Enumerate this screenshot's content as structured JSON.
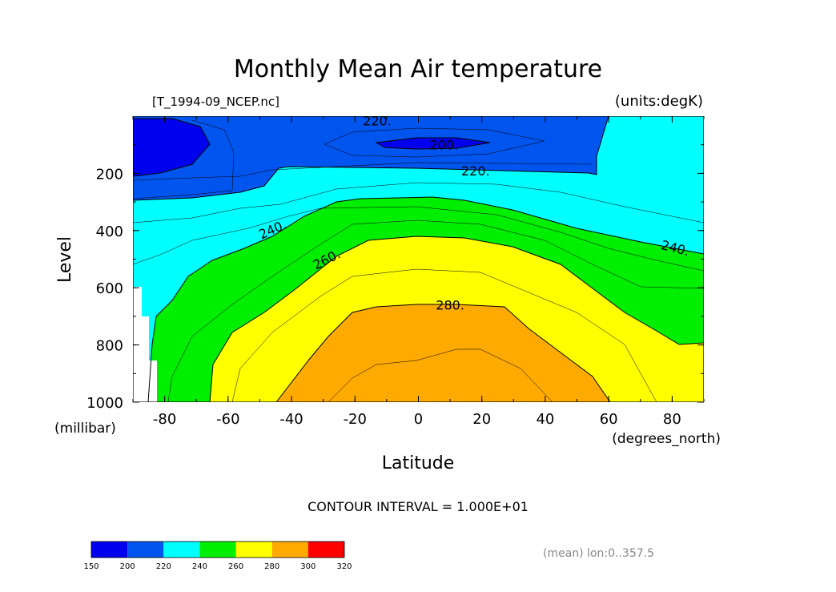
{
  "chart_data": {
    "type": "contour",
    "title": "Monthly Mean Air temperature",
    "source_label": "[T_1994-09_NCEP.nc]",
    "units_label": "(units:degK)",
    "xlabel": "Latitude",
    "x_units": "(degrees_north)",
    "ylabel": "Level",
    "y_units": "(millibar)",
    "xlim": [
      -90,
      90
    ],
    "ylim": [
      1000,
      0
    ],
    "x_ticks": [
      "-80",
      "-60",
      "-40",
      "-20",
      "0",
      "20",
      "40",
      "60",
      "80"
    ],
    "x_tick_values": [
      -80,
      -60,
      -40,
      -20,
      0,
      20,
      40,
      60,
      80
    ],
    "y_ticks": [
      "200",
      "400",
      "600",
      "800",
      "1000"
    ],
    "y_tick_values": [
      200,
      400,
      600,
      800,
      1000
    ],
    "contour_interval_text": "CONTOUR INTERVAL = 1.000E+01",
    "averaging_note": "(mean) lon:0..357.5",
    "contour_labels": [
      {
        "text": "220.",
        "lat": -13,
        "level": 15
      },
      {
        "text": "200.",
        "lat": 8,
        "level": 100
      },
      {
        "text": "220.",
        "lat": 18,
        "level": 190
      },
      {
        "text": "240.",
        "lat": -46,
        "level": 395
      },
      {
        "text": "260.",
        "lat": -29,
        "level": 500
      },
      {
        "text": "240.",
        "lat": 81,
        "level": 460
      },
      {
        "text": "280.",
        "lat": 10,
        "level": 660
      }
    ],
    "colorbar": {
      "levels": [
        "150",
        "200",
        "220",
        "240",
        "260",
        "280",
        "300",
        "320"
      ],
      "colors": [
        "#0000ee",
        "#0055ee",
        "#00ffff",
        "#00ee00",
        "#ffff00",
        "#ffaa00",
        "#ff0000"
      ]
    },
    "band_colors": {
      "lt200": "#0000ee",
      "b200_220": "#0055ee",
      "b220_240": "#00ffff",
      "b240_260": "#00ee00",
      "b260_280": "#ffff00",
      "b280_300": "#ffaa00"
    }
  }
}
